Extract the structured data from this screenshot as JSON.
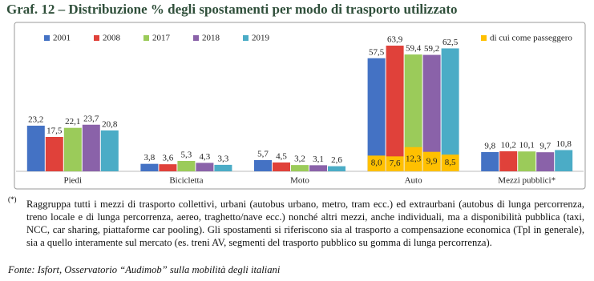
{
  "chart_data": {
    "type": "bar",
    "title": "Graf. 12 – Distribuzione % degli spostamenti per modo di trasporto utilizzato",
    "categories": [
      "Piedi",
      "Bicicletta",
      "Moto",
      "Auto",
      "Mezzi pubblici*"
    ],
    "series": [
      {
        "name": "2001",
        "color": "#4472c4",
        "values": [
          23.2,
          3.8,
          5.7,
          57.5,
          9.8
        ],
        "value_labels": [
          "23,2",
          "3,8",
          "5,7",
          "57,5",
          "9,8"
        ],
        "passenger_values": [
          null,
          null,
          null,
          8.0,
          null
        ],
        "passenger_labels": [
          null,
          null,
          null,
          "8,0",
          null
        ]
      },
      {
        "name": "2008",
        "color": "#e0413a",
        "values": [
          17.5,
          3.6,
          4.5,
          63.9,
          10.2
        ],
        "value_labels": [
          "17,5",
          "3,6",
          "4,5",
          "63,9",
          "10,2"
        ],
        "passenger_values": [
          null,
          null,
          null,
          7.6,
          null
        ],
        "passenger_labels": [
          null,
          null,
          null,
          "7,6",
          null
        ]
      },
      {
        "name": "2017",
        "color": "#9bcb5a",
        "values": [
          22.1,
          5.3,
          3.2,
          59.4,
          10.1
        ],
        "value_labels": [
          "22,1",
          "5,3",
          "3,2",
          "59,4",
          "10,1"
        ],
        "passenger_values": [
          null,
          null,
          null,
          12.3,
          null
        ],
        "passenger_labels": [
          null,
          null,
          null,
          "12,3",
          null
        ]
      },
      {
        "name": "2018",
        "color": "#8a62a9",
        "values": [
          23.7,
          4.3,
          3.1,
          59.2,
          9.7
        ],
        "value_labels": [
          "23,7",
          "4,3",
          "3,1",
          "59,2",
          "9,7"
        ],
        "passenger_values": [
          null,
          null,
          null,
          9.9,
          null
        ],
        "passenger_labels": [
          null,
          null,
          null,
          "9,9",
          null
        ]
      },
      {
        "name": "2019",
        "color": "#4bacc6",
        "values": [
          20.8,
          3.3,
          2.6,
          62.5,
          10.8
        ],
        "value_labels": [
          "20,8",
          "3,3",
          "2,6",
          "62,5",
          "10,8"
        ],
        "passenger_values": [
          null,
          null,
          null,
          8.5,
          null
        ],
        "passenger_labels": [
          null,
          null,
          null,
          "8,5",
          null
        ]
      }
    ],
    "passenger_name": "di cui come passeggero",
    "passenger_color": "#ffc000"
  },
  "footnote": {
    "marker": "(*)",
    "text": "Raggruppa tutti i mezzi di trasporto collettivi, urbani (autobus urbano, metro, tram ecc.) ed extraurbani (autobus di lunga percorrenza, treno locale e di lunga percorrenza, aereo, traghetto/nave ecc.) nonché altri mezzi, anche individuali, ma a disponibilità pubblica (taxi, NCC, car sharing, piattaforme car pooling). Gli spostamenti si riferiscono sia al trasporto a compensazione economica (Tpl in generale), sia a quello interamente sul mercato (es. treni AV, segmenti del trasporto pubblico su gomma di lunga percorrenza)."
  },
  "source": "Fonte: Isfort, Osservatorio “Audimob” sulla mobilità degli italiani"
}
